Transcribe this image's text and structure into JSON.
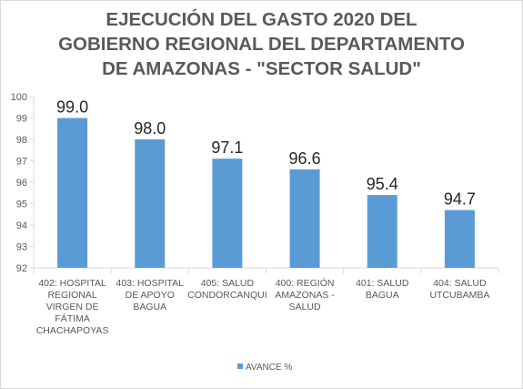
{
  "chart_data": {
    "type": "bar",
    "title_lines": [
      "EJECUCIÓN DEL GASTO 2020 DEL",
      "GOBIERNO REGIONAL DEL DEPARTAMENTO",
      "DE AMAZONAS - \"SECTOR SALUD\""
    ],
    "categories": [
      [
        "402: HOSPITAL",
        "REGIONAL",
        "VIRGEN DE",
        "FÁTIMA",
        "CHACHAPOYAS"
      ],
      [
        "403: HOSPITAL",
        "DE APOYO",
        "BAGUA"
      ],
      [
        "405: SALUD",
        "CONDORCANQUI"
      ],
      [
        "400: REGIÓN",
        "AMAZONAS -",
        "SALUD"
      ],
      [
        "401: SALUD",
        "BAGUA"
      ],
      [
        "404: SALUD",
        "UTCUBAMBA"
      ]
    ],
    "series": [
      {
        "name": "AVANCE %",
        "values": [
          99.0,
          98.0,
          97.1,
          96.6,
          95.4,
          94.7
        ]
      }
    ],
    "data_labels": [
      "99.0",
      "98.0",
      "97.1",
      "96.6",
      "95.4",
      "94.7"
    ],
    "ylim": [
      92,
      100
    ],
    "yticks": [
      92,
      93,
      94,
      95,
      96,
      97,
      98,
      99,
      100
    ],
    "grid": false,
    "legend_position": "bottom",
    "colors": {
      "bar": "#5b9bd5",
      "axis": "#d9d9d9",
      "text": "#595959"
    }
  }
}
